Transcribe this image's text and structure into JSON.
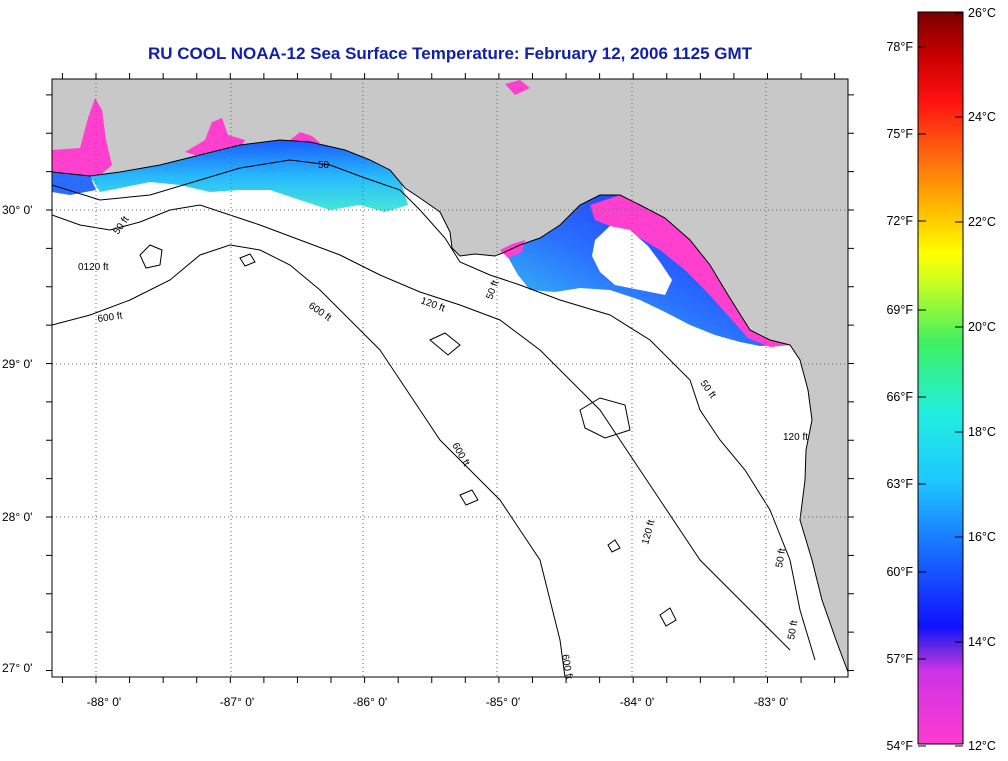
{
  "title": "RU COOL  NOAA-12  Sea Surface Temperature:  February 12, 2006 1125 GMT",
  "lon_ticks": [
    "-88° 0'",
    "-87° 0'",
    "-86° 0'",
    "-85° 0'",
    "-84° 0'",
    "-83° 0'"
  ],
  "lat_ticks": [
    "30° 0'",
    "29° 0'",
    "28° 0'",
    "27° 0'"
  ],
  "contour_labels": [
    "50",
    "50 ft",
    "0120 ft",
    "600 ft",
    "600 ft",
    "120 ft",
    "50 ft",
    "50 ft",
    "120 ft",
    "600 ft",
    "120 ft",
    "50 ft",
    "600 ft",
    "50 ft"
  ],
  "colorbar": {
    "fahrenheit": [
      "78°F",
      "75°F",
      "72°F",
      "69°F",
      "66°F",
      "63°F",
      "60°F",
      "57°F",
      "54°F"
    ],
    "celsius": [
      "26°C",
      "24°C",
      "22°C",
      "20°C",
      "18°C",
      "16°C",
      "14°C",
      "12°C"
    ]
  },
  "colors": {
    "land": "#c8c8c8",
    "title": "#1020a8",
    "water": "#ffffff"
  }
}
